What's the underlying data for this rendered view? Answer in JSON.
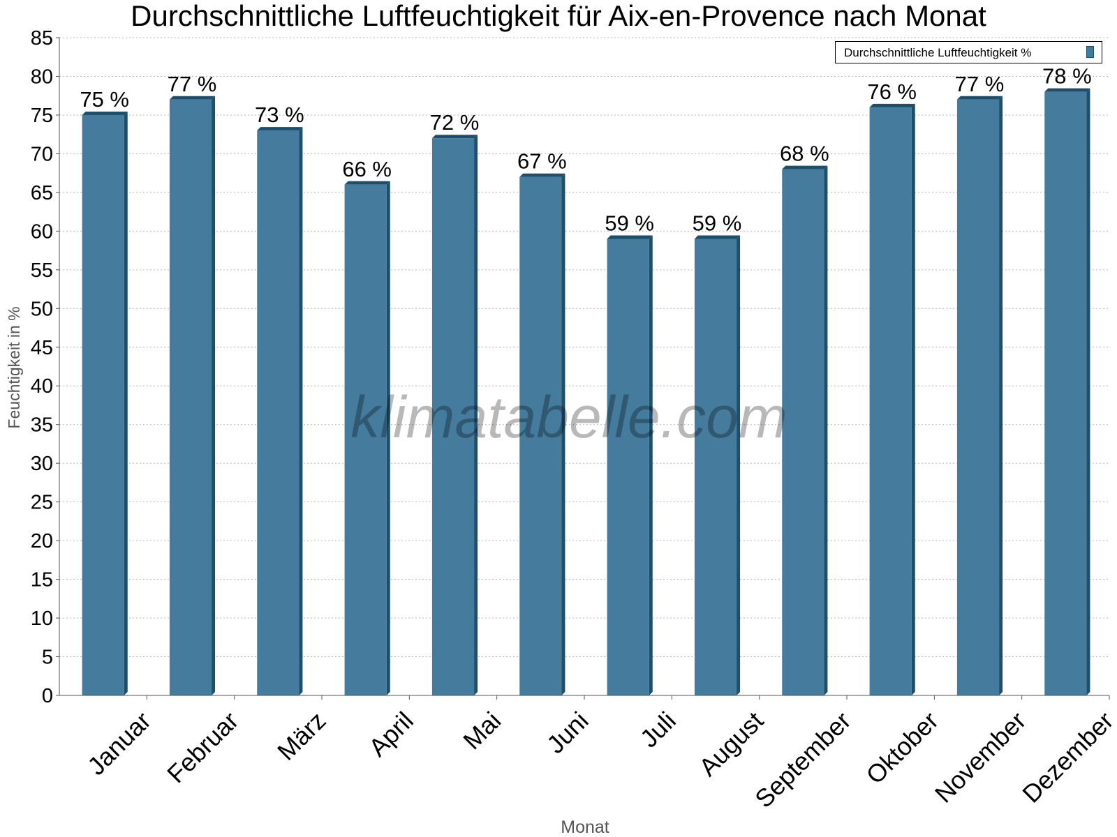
{
  "chart_data": {
    "type": "bar",
    "title": "Durchschnittliche Luftfeuchtigkeit für Aix-en-Provence nach Monat",
    "xlabel": "Monat",
    "ylabel": "Feuchtigkeit in %",
    "ylim": [
      0,
      85
    ],
    "ytick_step": 5,
    "grid": true,
    "legend_position": "top-right",
    "categories": [
      "Januar",
      "Februar",
      "März",
      "April",
      "Mai",
      "Juni",
      "Juli",
      "August",
      "September",
      "Oktober",
      "November",
      "Dezember"
    ],
    "series": [
      {
        "name": "Durchschnittliche Luftfeuchtigkeit %",
        "values": [
          75,
          77,
          73,
          66,
          72,
          67,
          59,
          59,
          68,
          76,
          77,
          78
        ],
        "labels": [
          "75 %",
          "77 %",
          "73 %",
          "66 %",
          "72 %",
          "67 %",
          "59 %",
          "59 %",
          "68 %",
          "76 %",
          "77 %",
          "78 %"
        ],
        "color": "#457b9d",
        "edge_color": "#1d4e6b"
      }
    ],
    "watermark": "klimatabelle.com"
  }
}
